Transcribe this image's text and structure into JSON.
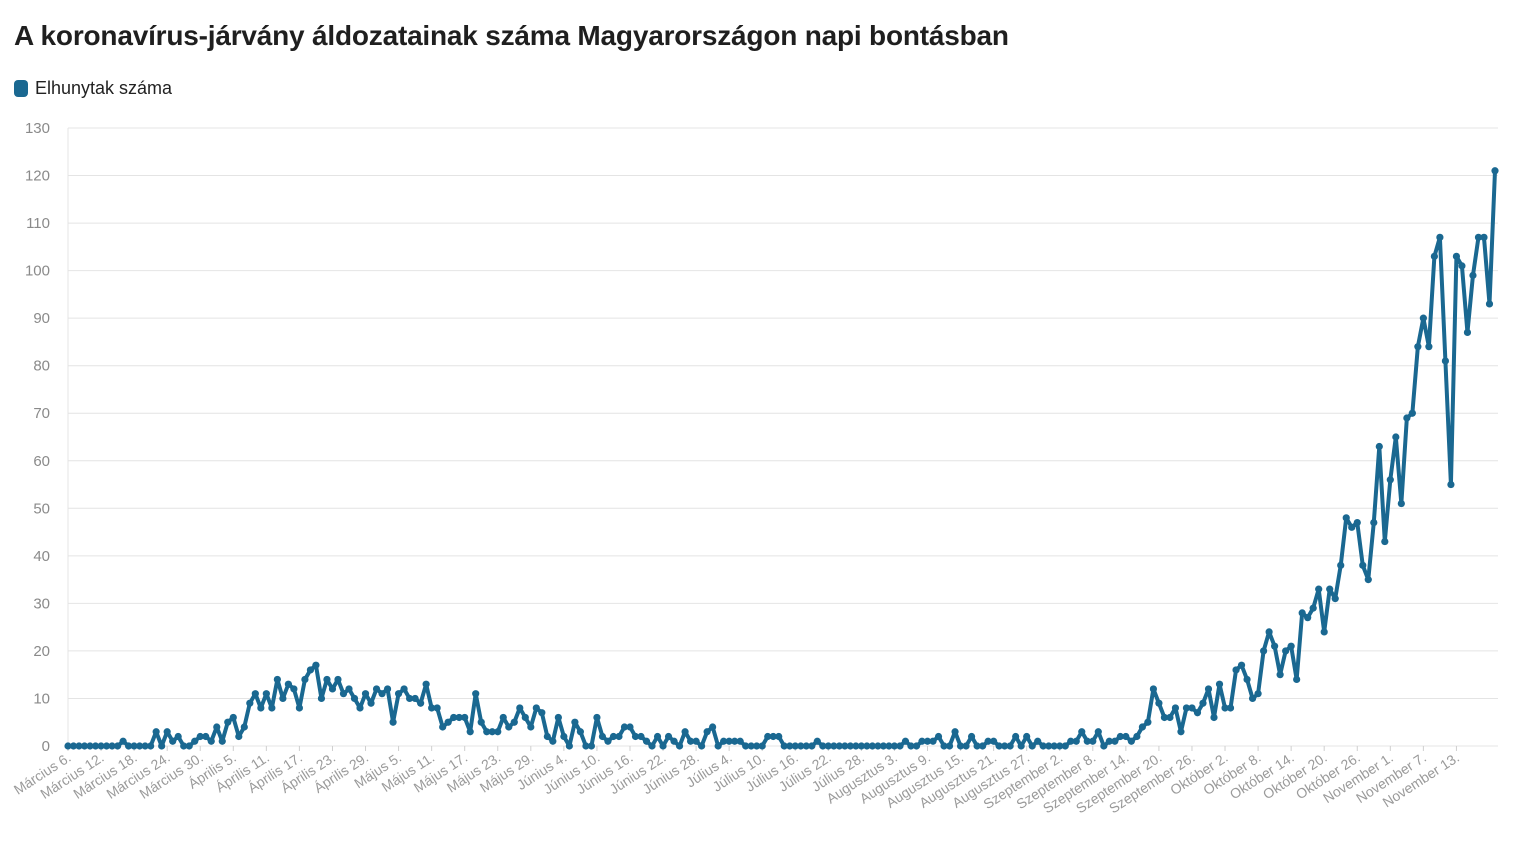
{
  "header": {
    "title": "A koronavírus-járvány áldozatainak száma Magyarországon napi bontásban"
  },
  "legend": {
    "label": "Elhunytak száma"
  },
  "colors": {
    "series": "#1a6891",
    "grid": "#e4e4e4"
  },
  "chart_data": {
    "type": "line",
    "title": "A koronavírus-járvány áldozatainak száma Magyarországon napi bontásban",
    "xlabel": "",
    "ylabel": "",
    "ylim": [
      0,
      130
    ],
    "yticks": [
      0,
      10,
      20,
      30,
      40,
      50,
      60,
      70,
      80,
      90,
      100,
      110,
      120,
      130
    ],
    "grid": true,
    "legend_position": "top-left",
    "x_start": "Március 6.",
    "x_end": "November 15.",
    "x_tick_labels": [
      "Március 6.",
      "Március 12.",
      "Március 18.",
      "Március 24.",
      "Március 30.",
      "Április 5.",
      "Április 11.",
      "Április 17.",
      "Április 23.",
      "Április 29.",
      "Május 5.",
      "Május 11.",
      "Május 17.",
      "Május 23.",
      "Május 29.",
      "Június 4.",
      "Június 10.",
      "Június 16.",
      "Június 22.",
      "Június 28.",
      "Július 4.",
      "Július 10.",
      "Július 16.",
      "Július 22.",
      "Július 28.",
      "Augusztus 3.",
      "Augusztus 9.",
      "Augusztus 15.",
      "Augusztus 21.",
      "Augusztus 27.",
      "Szeptember 2.",
      "Szeptember 8.",
      "Szeptember 14.",
      "Szeptember 20.",
      "Szeptember 26.",
      "Október 2.",
      "Október 8.",
      "Október 14.",
      "Október 20.",
      "Október 26.",
      "November 1.",
      "November 7.",
      "November 13."
    ],
    "series": [
      {
        "name": "Elhunytak száma",
        "values": [
          0,
          0,
          0,
          0,
          0,
          0,
          0,
          0,
          0,
          0,
          1,
          0,
          0,
          0,
          0,
          0,
          3,
          0,
          3,
          1,
          2,
          0,
          0,
          1,
          2,
          2,
          1,
          4,
          1,
          5,
          6,
          2,
          4,
          9,
          11,
          8,
          11,
          8,
          14,
          10,
          13,
          12,
          8,
          14,
          16,
          17,
          10,
          14,
          12,
          14,
          11,
          12,
          10,
          8,
          11,
          9,
          12,
          11,
          12,
          5,
          11,
          12,
          10,
          10,
          9,
          13,
          8,
          8,
          4,
          5,
          6,
          6,
          6,
          3,
          11,
          5,
          3,
          3,
          3,
          6,
          4,
          5,
          8,
          6,
          4,
          8,
          7,
          2,
          1,
          6,
          2,
          0,
          5,
          3,
          0,
          0,
          6,
          2,
          1,
          2,
          2,
          4,
          4,
          2,
          2,
          1,
          0,
          2,
          0,
          2,
          1,
          0,
          3,
          1,
          1,
          0,
          3,
          4,
          0,
          1,
          1,
          1,
          1,
          0,
          0,
          0,
          0,
          2,
          2,
          2,
          0,
          0,
          0,
          0,
          0,
          0,
          1,
          0,
          0,
          0,
          0,
          0,
          0,
          0,
          0,
          0,
          0,
          0,
          0,
          0,
          0,
          0,
          1,
          0,
          0,
          1,
          1,
          1,
          2,
          0,
          0,
          3,
          0,
          0,
          2,
          0,
          0,
          1,
          1,
          0,
          0,
          0,
          2,
          0,
          2,
          0,
          1,
          0,
          0,
          0,
          0,
          0,
          1,
          1,
          3,
          1,
          1,
          3,
          0,
          1,
          1,
          2,
          2,
          1,
          2,
          4,
          5,
          12,
          9,
          6,
          6,
          8,
          3,
          8,
          8,
          7,
          9,
          12,
          6,
          13,
          8,
          8,
          16,
          17,
          14,
          10,
          11,
          20,
          24,
          21,
          15,
          20,
          21,
          14,
          28,
          27,
          29,
          33,
          24,
          33,
          31,
          38,
          48,
          46,
          47,
          38,
          35,
          47,
          63,
          43,
          56,
          65,
          51,
          69,
          70,
          84,
          90,
          84,
          103,
          107,
          81,
          55,
          103,
          101,
          87,
          99,
          107,
          107,
          93,
          121
        ]
      }
    ]
  }
}
